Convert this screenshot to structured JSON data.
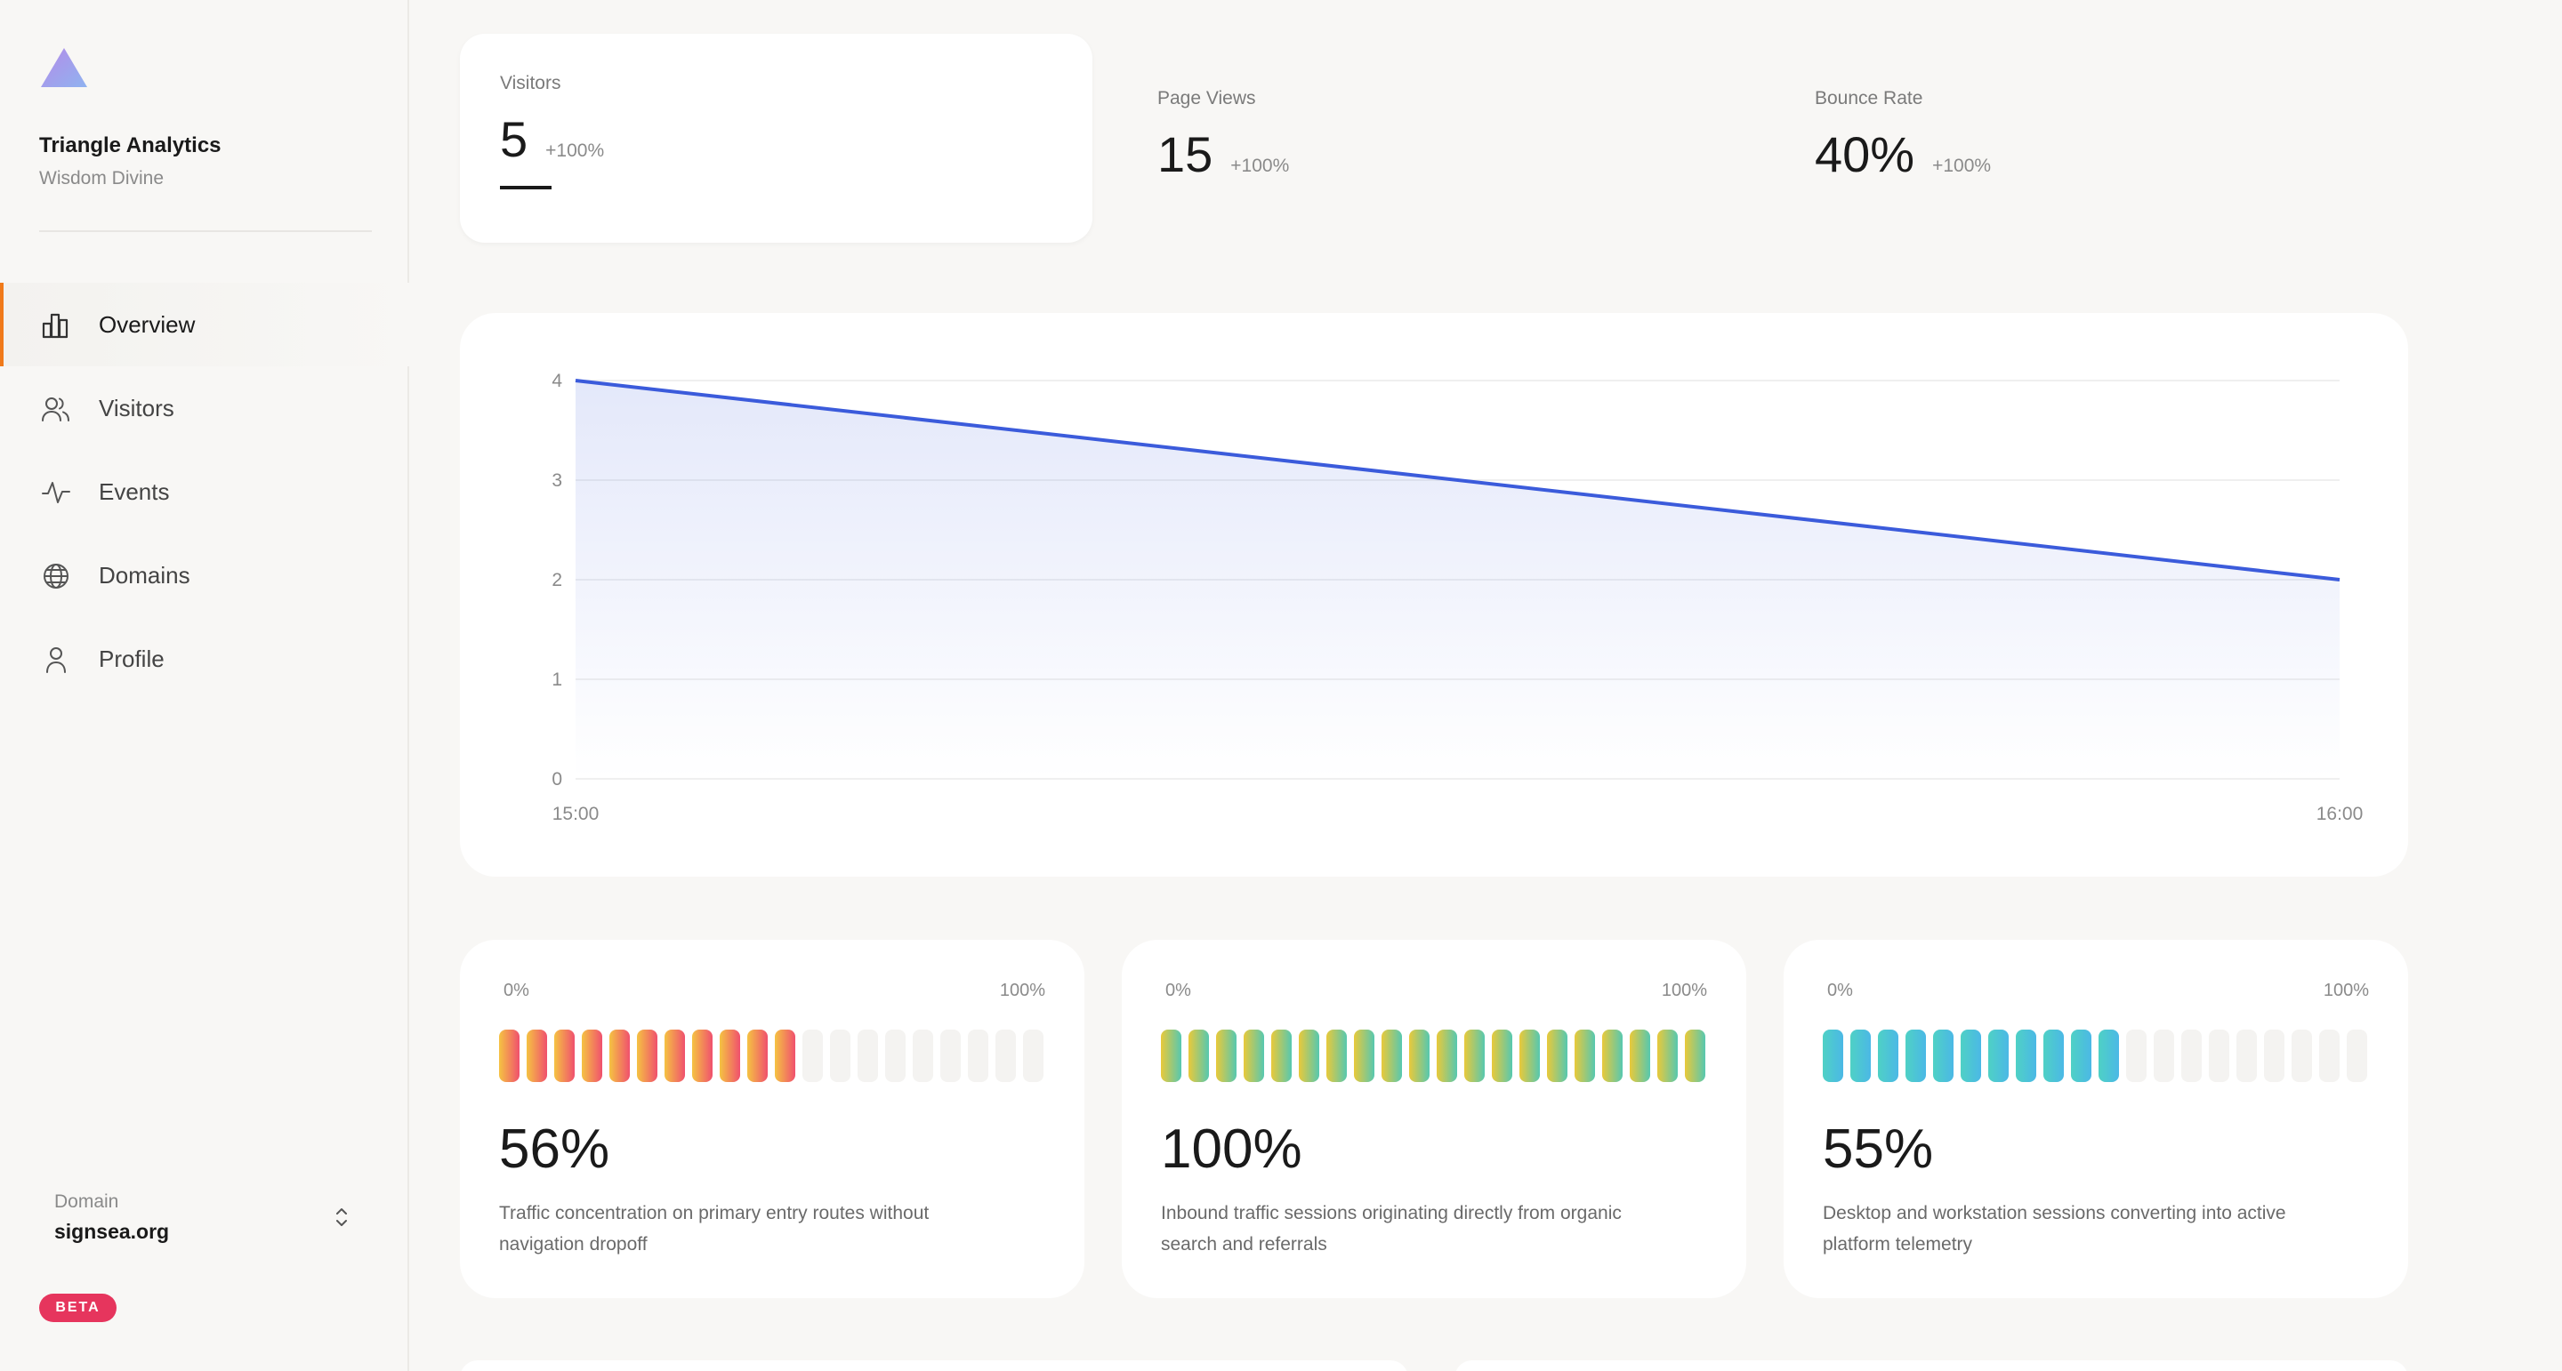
{
  "brand": {
    "name": "Triangle Analytics",
    "subtitle": "Wisdom Divine"
  },
  "nav": {
    "items": [
      {
        "label": "Overview",
        "icon": "bar-chart-icon",
        "active": true
      },
      {
        "label": "Visitors",
        "icon": "users-icon",
        "active": false
      },
      {
        "label": "Events",
        "icon": "activity-icon",
        "active": false
      },
      {
        "label": "Domains",
        "icon": "globe-icon",
        "active": false
      },
      {
        "label": "Profile",
        "icon": "user-icon",
        "active": false
      }
    ]
  },
  "domain": {
    "label": "Domain",
    "value": "signsea.org"
  },
  "beta_label": "BETA",
  "stats": [
    {
      "label": "Visitors",
      "value": "5",
      "change": "+100%",
      "selected": true
    },
    {
      "label": "Page Views",
      "value": "15",
      "change": "+100%",
      "selected": false
    },
    {
      "label": "Bounce Rate",
      "value": "40%",
      "change": "+100%",
      "selected": false
    }
  ],
  "chart_data": {
    "type": "area",
    "x": [
      "15:00",
      "16:00"
    ],
    "series": [
      {
        "values": [
          4,
          2
        ]
      }
    ],
    "ylim": [
      0,
      4
    ],
    "yticks": [
      0,
      1,
      2,
      3,
      4
    ],
    "xticks": [
      "15:00",
      "16:00"
    ],
    "grid": true,
    "color": "#3b5bdb"
  },
  "meters": [
    {
      "scale_min": "0%",
      "scale_max": "100%",
      "percent": "56%",
      "filled": 11,
      "total": 20,
      "description": "Traffic concentration on primary entry routes without navigation dropoff",
      "gradient": [
        "#f5c342",
        "#f0506e"
      ]
    },
    {
      "scale_min": "0%",
      "scale_max": "100%",
      "percent": "100%",
      "filled": 20,
      "total": 20,
      "description": "Inbound traffic sessions originating directly from organic search and referrals",
      "gradient": [
        "#e9c93a",
        "#56c8b0"
      ]
    },
    {
      "scale_min": "0%",
      "scale_max": "100%",
      "percent": "55%",
      "filled": 11,
      "total": 20,
      "description": "Desktop and workstation sessions converting into active platform telemetry",
      "gradient": [
        "#4fd1c5",
        "#4bb8e6"
      ]
    }
  ],
  "colors": {
    "accent": "#f07a1a",
    "line": "#3b5bdb",
    "beta": "#e6355d"
  }
}
